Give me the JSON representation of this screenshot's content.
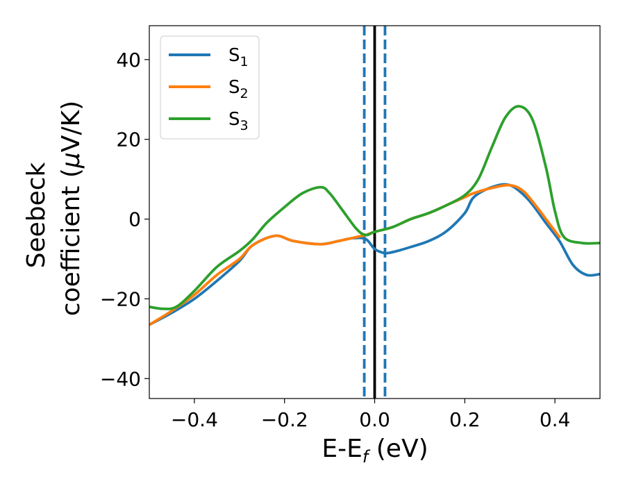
{
  "chart_data": {
    "type": "line",
    "xlabel_base": "E-E",
    "xlabel_sub": "f",
    "xlabel_unit": " (eV)",
    "ylabel_line1": "Seebeck",
    "ylabel_line2": "coefficient",
    "ylabel_mu": "μ",
    "ylabel_unit": "V/K)",
    "ylabel_open": " (",
    "xlim": [
      -0.5,
      0.5
    ],
    "ylim": [
      -45,
      48.5
    ],
    "xticks": [
      -0.4,
      -0.2,
      0.0,
      0.2,
      0.4
    ],
    "xtick_labels": [
      "−0.4",
      "−0.2",
      "0.0",
      "0.2",
      "0.4"
    ],
    "yticks": [
      -40,
      -20,
      0,
      20,
      40
    ],
    "ytick_labels": [
      "−40",
      "−20",
      "0",
      "20",
      "40"
    ],
    "legend_position": "top-left",
    "grid": false,
    "vertical_lines": [
      {
        "x": 0.0,
        "color": "#000000",
        "style": "solid"
      },
      {
        "x": -0.023,
        "color": "#1f77b4",
        "style": "dashed"
      },
      {
        "x": 0.023,
        "color": "#1f77b4",
        "style": "dashed"
      }
    ],
    "series": [
      {
        "name": "S",
        "subscript": "1",
        "color": "#1f77b4",
        "x": [
          -0.5,
          -0.45,
          -0.4,
          -0.35,
          -0.3,
          -0.27,
          -0.22,
          -0.18,
          -0.12,
          -0.08,
          -0.05,
          -0.02,
          0.0,
          0.02,
          0.03,
          0.05,
          0.08,
          0.12,
          0.16,
          0.2,
          0.22,
          0.26,
          0.3,
          0.34,
          0.38,
          0.41,
          0.44,
          0.47,
          0.5
        ],
        "y": [
          -26.5,
          -23.5,
          -20.0,
          -15.5,
          -10.5,
          -6.5,
          -4.2,
          -5.5,
          -6.3,
          -5.5,
          -4.8,
          -5.0,
          -7.5,
          -8.5,
          -8.5,
          -8.0,
          -7.0,
          -5.5,
          -3.0,
          1.5,
          5.5,
          8.0,
          8.5,
          5.0,
          -1.0,
          -5.5,
          -11.5,
          -14.0,
          -13.8
        ]
      },
      {
        "name": "S",
        "subscript": "2",
        "color": "#ff7f0e",
        "x": [
          -0.5,
          -0.45,
          -0.4,
          -0.35,
          -0.3,
          -0.27,
          -0.22,
          -0.18,
          -0.12,
          -0.08,
          -0.04,
          -0.02,
          0.0,
          0.04,
          0.08,
          0.12,
          0.16,
          0.2,
          0.22,
          0.26,
          0.3,
          0.33,
          0.36,
          0.39,
          0.41
        ],
        "y": [
          -26.5,
          -23.0,
          -19.0,
          -14.0,
          -10.0,
          -6.5,
          -4.2,
          -5.5,
          -6.3,
          -5.5,
          -4.5,
          -4.0,
          -3.2,
          -2.0,
          0.0,
          1.5,
          3.5,
          5.5,
          6.5,
          7.8,
          8.5,
          7.0,
          3.0,
          -1.5,
          -4.5
        ]
      },
      {
        "name": "S",
        "subscript": "3",
        "color": "#2ca02c",
        "x": [
          -0.5,
          -0.47,
          -0.44,
          -0.4,
          -0.35,
          -0.3,
          -0.27,
          -0.24,
          -0.2,
          -0.16,
          -0.12,
          -0.1,
          -0.07,
          -0.04,
          -0.02,
          0.0,
          0.04,
          0.08,
          0.12,
          0.16,
          0.2,
          0.23,
          0.26,
          0.29,
          0.32,
          0.35,
          0.38,
          0.4,
          0.42,
          0.46,
          0.5
        ],
        "y": [
          -22.0,
          -22.5,
          -22.0,
          -18.0,
          -12.0,
          -8.0,
          -5.0,
          -1.0,
          3.0,
          6.5,
          8.0,
          6.5,
          2.0,
          -2.5,
          -4.0,
          -3.2,
          -2.0,
          0.0,
          1.5,
          3.5,
          6.0,
          10.0,
          18.0,
          25.5,
          28.3,
          25.0,
          13.0,
          2.0,
          -4.5,
          -6.0,
          -6.0
        ]
      }
    ]
  }
}
